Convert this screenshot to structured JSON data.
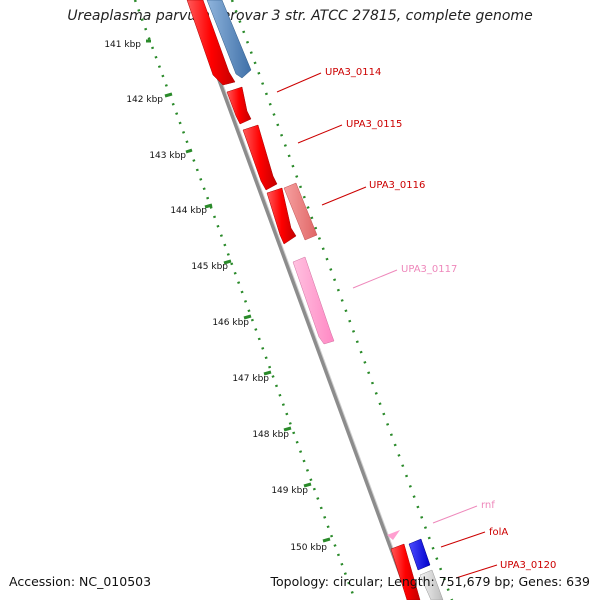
{
  "title": "Ureaplasma parvum serovar 3 str. ATCC 27815, complete genome",
  "footer": {
    "accession": "Accession: NC_010503",
    "summary": "Topology: circular; Length: 751,679 bp; Genes: 639"
  },
  "kbp_labels": [
    "141 kbp",
    "142 kbp",
    "143 kbp",
    "144 kbp",
    "145 kbp",
    "146 kbp",
    "147 kbp",
    "148 kbp",
    "149 kbp",
    "150 kbp"
  ],
  "genes": [
    {
      "label": "UPA3_0114",
      "color": "#cc0000"
    },
    {
      "label": "UPA3_0115",
      "color": "#cc0000"
    },
    {
      "label": "UPA3_0116",
      "color": "#cc0000"
    },
    {
      "label": "UPA3_0117",
      "color": "#ee88bb"
    },
    {
      "label": "rnf",
      "color": "#ee88bb"
    },
    {
      "label": "folA",
      "color": "#cc0000"
    },
    {
      "label": "UPA3_0120",
      "color": "#cc0000"
    }
  ],
  "colors": {
    "forward_cds": "#ff0000",
    "reverse_cds": "#5b8cc0",
    "reverse_cds_light": "#f08080",
    "rna": "#ff99cc",
    "reverse_blue": "#0000ee",
    "backbone": "#8c8c8c",
    "tick_green": "#2a8a2a"
  }
}
